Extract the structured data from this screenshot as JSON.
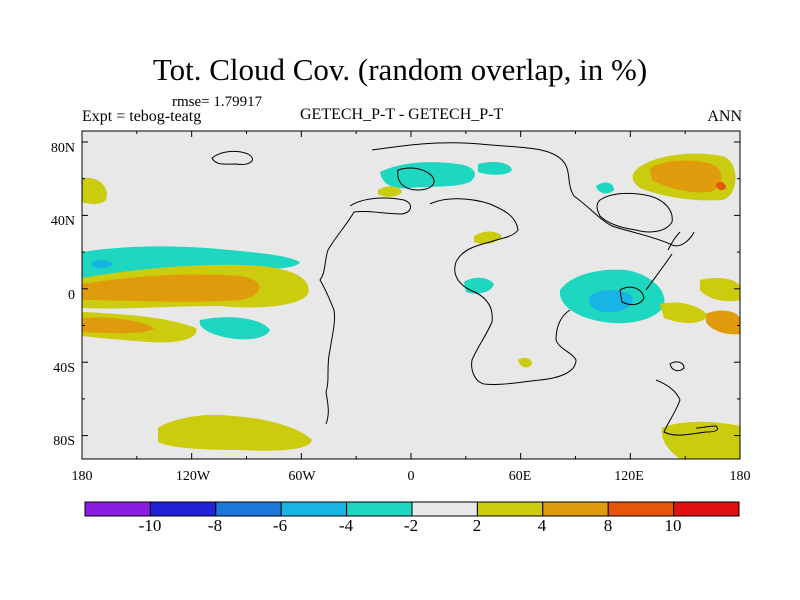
{
  "title": "Tot. Cloud Cov. (random overlap, in %)",
  "subtitle": {
    "rmse": "rmse= 1.79917",
    "experiment": "Expt = tebog-teatg",
    "comparison": "GETECH_P-T - GETECH_P-T",
    "season": "ANN"
  },
  "axes": {
    "x_ticks": [
      "180",
      "120W",
      "60W",
      "0",
      "60E",
      "120E",
      "180"
    ],
    "y_ticks": [
      "80N",
      "40N",
      "0",
      "40S",
      "80S"
    ]
  },
  "colorbar": {
    "labels": [
      "-10",
      "-8",
      "-6",
      "-4",
      "-2",
      "2",
      "4",
      "8",
      "10"
    ],
    "colors": [
      "#8a1ee0",
      "#2222d8",
      "#1c78dc",
      "#19b4e6",
      "#1ed7c0",
      "#e8e8e8",
      "#cccc0e",
      "#e09b0c",
      "#e6560a",
      "#e01010"
    ]
  },
  "field_colors": {
    "neutral": "#e8e8e8",
    "cyan": "#1ed7c0",
    "lightblue": "#19b4e6",
    "blue": "#1c78dc",
    "yellow": "#cccc0e",
    "orange": "#e09b0c",
    "red": "#e6560a"
  }
}
